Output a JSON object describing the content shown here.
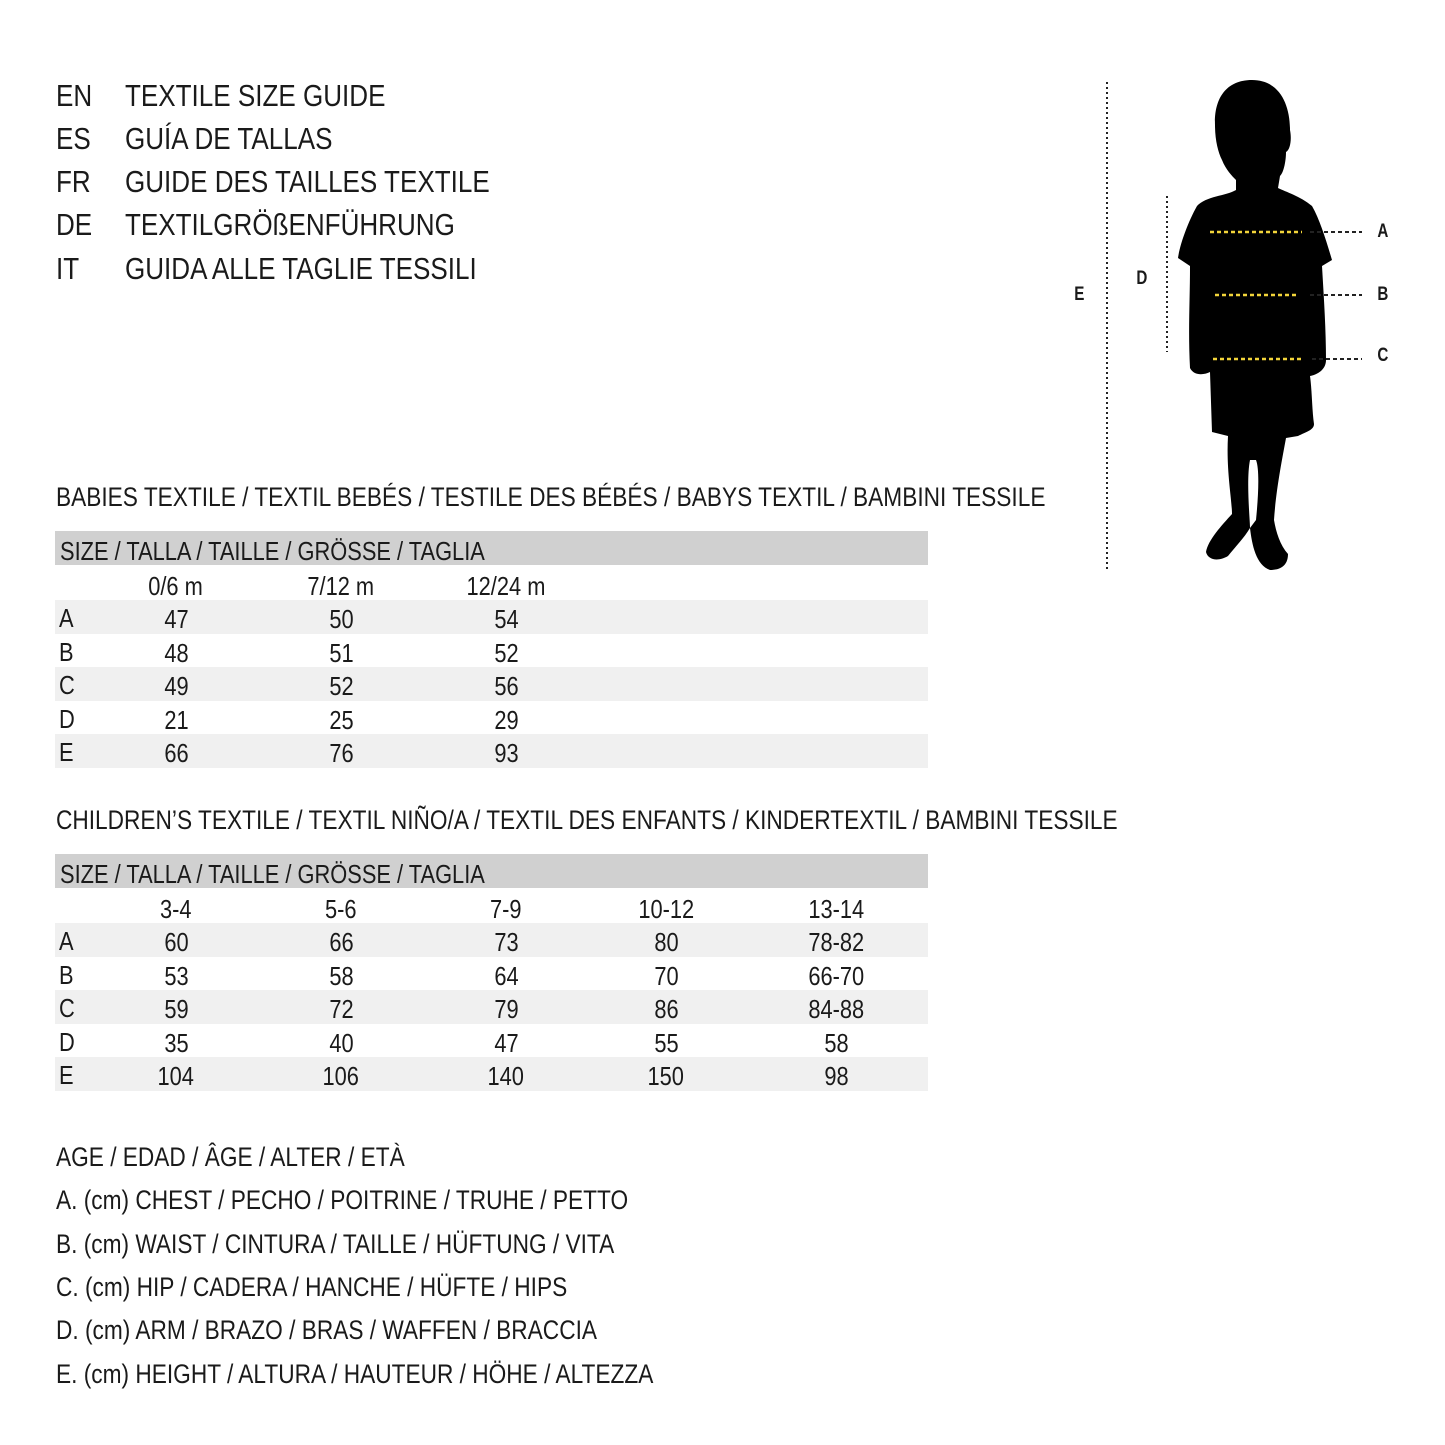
{
  "titles": [
    {
      "code": "EN",
      "text": "TEXTILE SIZE GUIDE"
    },
    {
      "code": "ES",
      "text": "GUÍA DE TALLAS"
    },
    {
      "code": "FR",
      "text": "GUIDE DES TAILLES TEXTILE"
    },
    {
      "code": "DE",
      "text": "TEXTILGRÖßENFÜHRUNG"
    },
    {
      "code": "IT",
      "text": "GUIDA ALLE TAGLIE TESSILI"
    }
  ],
  "diagram": {
    "labels": {
      "a": "A",
      "b": "B",
      "c": "C",
      "d": "D",
      "e": "E"
    },
    "measure_line_color": "#f2d43a"
  },
  "babies": {
    "heading": "BABIES TEXTILE / TEXTIL BEBÉS / TESTILE DES BÉBÉS / BABYS TEXTIL / BAMBINI TESSILE",
    "size_header": "SIZE / TALLA / TAILLE / GRÖSSE / TAGLIA",
    "columns": [
      "0/6 m",
      "7/12 m",
      "12/24 m"
    ],
    "rows": [
      {
        "label": "A",
        "values": [
          "47",
          "50",
          "54"
        ]
      },
      {
        "label": "B",
        "values": [
          "48",
          "51",
          "52"
        ]
      },
      {
        "label": "C",
        "values": [
          "49",
          "52",
          "56"
        ]
      },
      {
        "label": "D",
        "values": [
          "21",
          "25",
          "29"
        ]
      },
      {
        "label": "E",
        "values": [
          "66",
          "76",
          "93"
        ]
      }
    ]
  },
  "children": {
    "heading": "CHILDREN’S TEXTILE / TEXTIL NIÑO/A / TEXTIL DES ENFANTS / KINDERTEXTIL / BAMBINI TESSILE",
    "size_header": "SIZE / TALLA / TAILLE / GRÖSSE / TAGLIA",
    "columns": [
      "3-4",
      "5-6",
      "7-9",
      "10-12",
      "13-14"
    ],
    "rows": [
      {
        "label": "A",
        "values": [
          "60",
          "66",
          "73",
          "80",
          "78-82"
        ]
      },
      {
        "label": "B",
        "values": [
          "53",
          "58",
          "64",
          "70",
          "66-70"
        ]
      },
      {
        "label": "C",
        "values": [
          "59",
          "72",
          "79",
          "86",
          "84-88"
        ]
      },
      {
        "label": "D",
        "values": [
          "35",
          "40",
          "47",
          "55",
          "58"
        ]
      },
      {
        "label": "E",
        "values": [
          "104",
          "106",
          "140",
          "150",
          "98"
        ]
      }
    ]
  },
  "legend": [
    "AGE / EDAD / ÂGE / ALTER / ETÀ",
    "A. (cm) CHEST / PECHO / POITRINE / TRUHE / PETTO",
    "B. (cm) WAIST / CINTURA / TAILLE / HÜFTUNG / VITA",
    "C. (cm) HIP / CADERA / HANCHE / HÜFTE / HIPS",
    "D. (cm) ARM / BRAZO / BRAS / WAFFEN / BRACCIA",
    "E. (cm) HEIGHT / ALTURA / HAUTEUR / HÖHE / ALTEZZA"
  ]
}
